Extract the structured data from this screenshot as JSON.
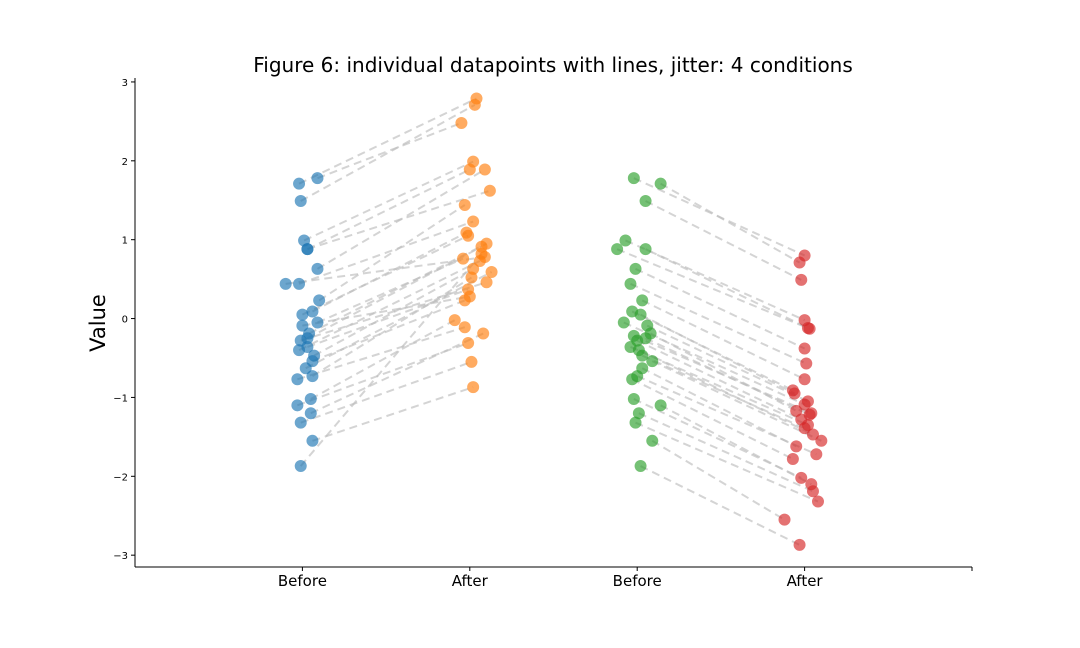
{
  "chart_data": {
    "type": "scatter",
    "title": "Figure 6: individual datapoints with lines, jitter: 4 conditions",
    "xlabel": "",
    "ylabel": "Value",
    "categories": [
      "Before",
      "After",
      "Before",
      "After"
    ],
    "yticks": [
      -3,
      -2,
      -1,
      0,
      1,
      2,
      3
    ],
    "ylim": [
      -3.15,
      3.05
    ],
    "xlim": [
      -1,
      4
    ],
    "grid": false,
    "colors": [
      "#1f77b4",
      "#ff7f0e",
      "#2ca02c",
      "#d62728"
    ],
    "line_color": "#bdbdbd",
    "series": [
      {
        "x": [
          -0.02,
          -0.01,
          0.09,
          0.01,
          0.03,
          0.09,
          0.03,
          0.1,
          -0.02,
          0.06,
          0.0,
          0.04,
          0.03,
          -0.1,
          0.09,
          -0.02,
          0.07,
          0.02,
          0.06,
          -0.01,
          0.03,
          0.0,
          0.06,
          0.05,
          -0.03,
          0.05,
          -0.03,
          -0.01,
          0.06,
          -0.01
        ],
        "y": [
          1.71,
          1.49,
          1.78,
          0.99,
          0.88,
          0.63,
          0.88,
          0.23,
          0.44,
          0.09,
          0.05,
          -0.19,
          -0.25,
          0.44,
          -0.05,
          -0.4,
          -0.47,
          -0.63,
          -0.73,
          -0.28,
          -0.36,
          -0.09,
          -0.54,
          -1.02,
          -0.77,
          -1.2,
          -1.1,
          -1.32,
          -1.55,
          -1.87
        ],
        "values_y_after": [
          2.79,
          2.71,
          2.48,
          1.99,
          1.89,
          1.89,
          1.62,
          1.44,
          1.23,
          1.09,
          1.05,
          0.95,
          0.91,
          0.78,
          0.76,
          0.73,
          0.63,
          0.59,
          0.52,
          0.46,
          0.37,
          0.28,
          0.23,
          -0.02,
          -0.11,
          -0.19,
          -0.31,
          -0.55,
          -0.87,
          0.82
        ],
        "x_after": [
          1.04,
          1.03,
          0.95,
          1.02,
          1.0,
          1.09,
          1.12,
          0.97,
          1.02,
          0.98,
          0.99,
          1.1,
          1.07,
          1.09,
          0.96,
          1.06,
          1.02,
          1.13,
          1.01,
          1.1,
          0.99,
          1.0,
          0.97,
          0.91,
          0.97,
          1.08,
          0.99,
          1.01,
          1.02,
          1.07
        ]
      },
      {
        "x": [
          1.04,
          1.03,
          0.95,
          1.02,
          1.0,
          1.09,
          1.12,
          0.97,
          1.02,
          0.98,
          0.99,
          1.1,
          1.07,
          1.09,
          0.96,
          1.06,
          1.02,
          1.13,
          1.01,
          1.1,
          0.99,
          1.0,
          0.97,
          0.91,
          0.97,
          1.08,
          0.99,
          1.01,
          1.02,
          1.07
        ],
        "y": [
          2.79,
          2.71,
          2.48,
          1.99,
          1.89,
          1.89,
          1.62,
          1.44,
          1.23,
          1.09,
          1.05,
          0.95,
          0.91,
          0.78,
          0.76,
          0.73,
          0.63,
          0.59,
          0.52,
          0.46,
          0.37,
          0.28,
          0.23,
          -0.02,
          -0.11,
          -0.19,
          -0.31,
          -0.55,
          -0.87,
          0.82
        ]
      },
      {
        "x": [
          1.98,
          2.14,
          2.05,
          1.93,
          2.05,
          1.88,
          1.99,
          1.96,
          2.03,
          1.97,
          2.02,
          2.06,
          1.92,
          2.08,
          1.98,
          2.0,
          2.05,
          1.96,
          2.03,
          2.01,
          2.09,
          2.03,
          2.0,
          1.97,
          1.98,
          2.14,
          2.01,
          1.99,
          2.09,
          2.02
        ],
        "y": [
          1.78,
          1.71,
          1.49,
          0.99,
          0.88,
          0.88,
          0.63,
          0.44,
          0.23,
          0.09,
          0.05,
          -0.09,
          -0.05,
          -0.19,
          -0.22,
          -0.28,
          -0.25,
          -0.36,
          -0.47,
          -0.4,
          -0.54,
          -0.63,
          -0.73,
          -0.77,
          -1.02,
          -1.1,
          -1.2,
          -1.32,
          -1.55,
          -1.87
        ]
      },
      {
        "x": [
          3.0,
          2.97,
          2.98,
          3.0,
          3.02,
          3.03,
          3.0,
          3.01,
          3.0,
          2.93,
          2.94,
          3.02,
          3.0,
          2.95,
          3.04,
          2.98,
          3.03,
          3.02,
          3.0,
          3.05,
          3.1,
          2.95,
          3.07,
          2.93,
          2.98,
          3.04,
          3.05,
          3.08,
          2.88,
          2.97
        ],
        "y": [
          0.8,
          0.71,
          0.49,
          -0.02,
          -0.12,
          -0.13,
          -0.38,
          -0.57,
          -0.77,
          -0.91,
          -0.95,
          -1.05,
          -1.09,
          -1.17,
          -1.2,
          -1.28,
          -1.22,
          -1.35,
          -1.39,
          -1.47,
          -1.55,
          -1.62,
          -1.72,
          -1.78,
          -2.02,
          -2.1,
          -2.19,
          -2.32,
          -2.55,
          -2.87
        ]
      }
    ]
  }
}
